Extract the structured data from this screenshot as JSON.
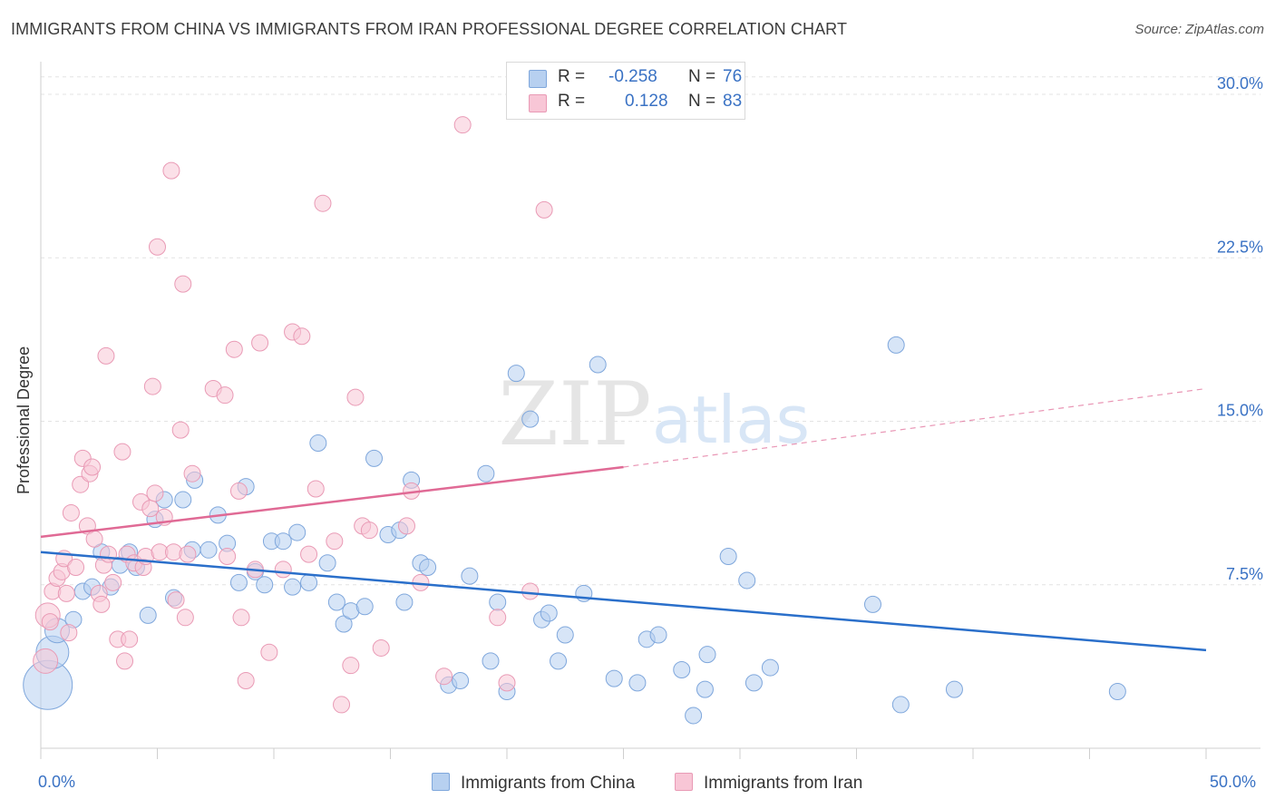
{
  "title": "IMMIGRANTS FROM CHINA VS IMMIGRANTS FROM IRAN PROFESSIONAL DEGREE CORRELATION CHART",
  "source": "Source: ZipAtlas.com",
  "watermark": {
    "zip": "ZIP",
    "atlas": "atlas"
  },
  "legend": {
    "china": {
      "r_label": "R =",
      "r_value": "-0.258",
      "n_label": "N =",
      "n_value": "76"
    },
    "iran": {
      "r_label": "R =",
      "r_value": "0.128",
      "n_label": "N =",
      "n_value": "83"
    }
  },
  "colors": {
    "china_fill": "#b7d0f0",
    "china_stroke": "#7fa7dc",
    "china_line": "#2a6fca",
    "iran_fill": "#f8c6d6",
    "iran_stroke": "#e99ab5",
    "iran_line": "#e06a95",
    "tick_label": "#3a72c4"
  },
  "chart_data": {
    "type": "scatter",
    "xlabel": "",
    "ylabel": "Professional Degree",
    "xlim": [
      0,
      50
    ],
    "ylim": [
      0,
      31
    ],
    "x_tick_labels": [
      "0.0%",
      "50.0%"
    ],
    "y_ticks": [
      7.5,
      15,
      22.5,
      30
    ],
    "y_tick_labels": [
      "7.5%",
      "15.0%",
      "22.5%",
      "30.0%"
    ],
    "grid": "horizontal dashed",
    "legend_position": "top-center",
    "series": [
      {
        "name": "Immigrants from China",
        "trend": {
          "x": [
            0,
            50
          ],
          "y": [
            9.0,
            4.5
          ],
          "dashed_from": null
        },
        "points": [
          [
            0.3,
            2.9,
            3
          ],
          [
            0.5,
            4.4,
            2
          ],
          [
            0.7,
            5.4,
            1.5
          ],
          [
            1.4,
            5.9,
            1
          ],
          [
            1.8,
            7.2,
            1
          ],
          [
            2.2,
            7.4,
            1
          ],
          [
            2.6,
            9.0,
            1
          ],
          [
            3.0,
            7.4,
            1
          ],
          [
            3.4,
            8.4,
            1
          ],
          [
            3.8,
            9.0,
            1
          ],
          [
            4.1,
            8.3,
            1
          ],
          [
            4.6,
            6.1,
            1
          ],
          [
            4.9,
            10.5,
            1
          ],
          [
            5.3,
            11.4,
            1
          ],
          [
            5.7,
            6.9,
            1
          ],
          [
            6.1,
            11.4,
            1
          ],
          [
            6.5,
            9.1,
            1
          ],
          [
            6.6,
            12.3,
            1
          ],
          [
            7.2,
            9.1,
            1
          ],
          [
            7.6,
            10.7,
            1
          ],
          [
            8.0,
            9.4,
            1
          ],
          [
            8.5,
            7.6,
            1
          ],
          [
            8.8,
            12.0,
            1
          ],
          [
            9.2,
            8.1,
            1
          ],
          [
            9.6,
            7.5,
            1
          ],
          [
            9.9,
            9.5,
            1
          ],
          [
            10.4,
            9.5,
            1
          ],
          [
            10.8,
            7.4,
            1
          ],
          [
            11.0,
            9.9,
            1
          ],
          [
            11.5,
            7.6,
            1
          ],
          [
            11.9,
            14.0,
            1
          ],
          [
            12.3,
            8.5,
            1
          ],
          [
            12.7,
            6.7,
            1
          ],
          [
            13.0,
            5.7,
            1
          ],
          [
            13.3,
            6.3,
            1
          ],
          [
            13.9,
            6.5,
            1
          ],
          [
            14.3,
            13.3,
            1
          ],
          [
            14.9,
            9.8,
            1
          ],
          [
            15.4,
            10.0,
            1
          ],
          [
            15.6,
            6.7,
            1
          ],
          [
            15.9,
            12.3,
            1
          ],
          [
            16.3,
            8.5,
            1
          ],
          [
            16.6,
            8.3,
            1
          ],
          [
            17.5,
            2.9,
            1
          ],
          [
            18.0,
            3.1,
            1
          ],
          [
            18.4,
            7.9,
            1
          ],
          [
            19.1,
            12.6,
            1
          ],
          [
            19.3,
            4.0,
            1
          ],
          [
            19.6,
            6.7,
            1
          ],
          [
            20.0,
            2.6,
            1
          ],
          [
            20.4,
            17.2,
            1
          ],
          [
            21.0,
            15.1,
            1
          ],
          [
            21.5,
            5.9,
            1
          ],
          [
            21.8,
            6.2,
            1
          ],
          [
            22.2,
            4.0,
            1
          ],
          [
            22.5,
            5.2,
            1
          ],
          [
            23.3,
            7.1,
            1
          ],
          [
            23.9,
            17.6,
            1
          ],
          [
            24.6,
            3.2,
            1
          ],
          [
            25.6,
            3.0,
            1
          ],
          [
            26.0,
            5.0,
            1
          ],
          [
            26.5,
            5.2,
            1
          ],
          [
            27.5,
            3.6,
            1
          ],
          [
            28.0,
            1.5,
            1
          ],
          [
            28.5,
            2.7,
            1
          ],
          [
            28.6,
            4.3,
            1
          ],
          [
            29.5,
            8.8,
            1
          ],
          [
            30.3,
            7.7,
            1
          ],
          [
            30.6,
            3.0,
            1
          ],
          [
            31.3,
            3.7,
            1
          ],
          [
            35.7,
            6.6,
            1
          ],
          [
            36.7,
            18.5,
            1
          ],
          [
            36.9,
            2.0,
            1
          ],
          [
            39.2,
            2.7,
            1
          ],
          [
            46.2,
            2.6,
            1
          ]
        ]
      },
      {
        "name": "Immigrants from Iran",
        "trend": {
          "x": [
            0,
            25,
            50
          ],
          "y": [
            9.7,
            12.9,
            16.5
          ],
          "dashed_from": 25
        },
        "points": [
          [
            0.2,
            4.0,
            1.5
          ],
          [
            0.3,
            6.1,
            1.5
          ],
          [
            0.4,
            5.8,
            1
          ],
          [
            0.5,
            7.2,
            1
          ],
          [
            0.7,
            7.8,
            1
          ],
          [
            0.9,
            8.1,
            1
          ],
          [
            1.0,
            8.7,
            1
          ],
          [
            1.1,
            7.1,
            1
          ],
          [
            1.2,
            5.3,
            1
          ],
          [
            1.3,
            10.8,
            1
          ],
          [
            1.5,
            8.3,
            1
          ],
          [
            1.7,
            12.1,
            1
          ],
          [
            1.8,
            13.3,
            1
          ],
          [
            2.0,
            10.2,
            1
          ],
          [
            2.1,
            12.6,
            1
          ],
          [
            2.2,
            12.9,
            1
          ],
          [
            2.3,
            9.6,
            1
          ],
          [
            2.5,
            7.1,
            1
          ],
          [
            2.6,
            6.6,
            1
          ],
          [
            2.7,
            8.4,
            1
          ],
          [
            2.8,
            18.0,
            1
          ],
          [
            2.9,
            8.9,
            1
          ],
          [
            3.1,
            7.6,
            1
          ],
          [
            3.3,
            5.0,
            1
          ],
          [
            3.5,
            13.6,
            1
          ],
          [
            3.6,
            4.0,
            1
          ],
          [
            3.7,
            8.9,
            1
          ],
          [
            3.8,
            5.0,
            1
          ],
          [
            4.0,
            8.5,
            1
          ],
          [
            4.3,
            11.3,
            1
          ],
          [
            4.4,
            8.3,
            1
          ],
          [
            4.5,
            8.8,
            1
          ],
          [
            4.7,
            11.0,
            1
          ],
          [
            4.8,
            16.6,
            1
          ],
          [
            4.9,
            11.7,
            1
          ],
          [
            5.0,
            23.0,
            1
          ],
          [
            5.1,
            9.0,
            1
          ],
          [
            5.3,
            10.6,
            1
          ],
          [
            5.6,
            26.5,
            1
          ],
          [
            5.7,
            9.0,
            1
          ],
          [
            5.8,
            6.8,
            1
          ],
          [
            6.0,
            14.6,
            1
          ],
          [
            6.1,
            21.3,
            1
          ],
          [
            6.2,
            6.0,
            1
          ],
          [
            6.3,
            8.9,
            1
          ],
          [
            6.5,
            12.6,
            1
          ],
          [
            7.4,
            16.5,
            1
          ],
          [
            7.9,
            16.2,
            1
          ],
          [
            8.0,
            8.8,
            1
          ],
          [
            8.3,
            18.3,
            1
          ],
          [
            8.5,
            11.8,
            1
          ],
          [
            8.6,
            6.0,
            1
          ],
          [
            8.8,
            3.1,
            1
          ],
          [
            9.2,
            8.2,
            1
          ],
          [
            9.4,
            18.6,
            1
          ],
          [
            9.8,
            4.4,
            1
          ],
          [
            10.4,
            8.2,
            1
          ],
          [
            10.8,
            19.1,
            1
          ],
          [
            11.2,
            18.9,
            1
          ],
          [
            11.5,
            8.9,
            1
          ],
          [
            11.8,
            11.9,
            1
          ],
          [
            12.1,
            25.0,
            1
          ],
          [
            12.6,
            9.5,
            1
          ],
          [
            12.9,
            2.0,
            1
          ],
          [
            13.3,
            3.8,
            1
          ],
          [
            13.5,
            16.1,
            1
          ],
          [
            13.8,
            10.2,
            1
          ],
          [
            14.1,
            10.0,
            1
          ],
          [
            14.6,
            4.6,
            1
          ],
          [
            15.7,
            10.2,
            1
          ],
          [
            15.9,
            11.8,
            1
          ],
          [
            16.3,
            7.6,
            1
          ],
          [
            17.3,
            3.3,
            1
          ],
          [
            18.1,
            28.6,
            1
          ],
          [
            19.6,
            6.0,
            1
          ],
          [
            20.0,
            3.0,
            1
          ],
          [
            21.0,
            7.2,
            1
          ],
          [
            21.6,
            24.7,
            1
          ]
        ]
      }
    ]
  },
  "bottom_legend": {
    "china": "Immigrants from China",
    "iran": "Immigrants from Iran"
  }
}
